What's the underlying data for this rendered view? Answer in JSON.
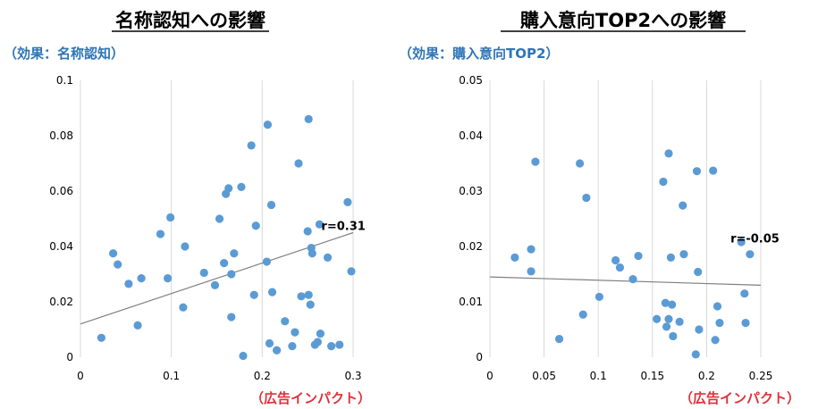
{
  "colors": {
    "point": "#5B9BD5",
    "grid": "#D9D9D9",
    "trend": "#7F7F7F",
    "effect": "#2E75B6",
    "xlabel": "#E0303A"
  },
  "chart_data": [
    {
      "type": "scatter",
      "title": "名称認知への影響",
      "subtitle": "（効果：名称認知）",
      "xlabel": "（広告インパクト）",
      "xlim": [
        0,
        0.3
      ],
      "ylim": [
        0,
        0.1
      ],
      "xticks": [
        "0",
        "0.1",
        "0.2",
        "0.3"
      ],
      "yticks": [
        "0",
        "0.02",
        "0.04",
        "0.06",
        "0.08",
        "0.1"
      ],
      "grid": "vertical",
      "trendline": {
        "x": [
          0,
          0.3
        ],
        "y": [
          0.012,
          0.045
        ]
      },
      "annotation": {
        "text": "r=0.31",
        "x": 0.265,
        "y": 0.046
      },
      "points": [
        [
          0.023,
          0.007
        ],
        [
          0.036,
          0.0375
        ],
        [
          0.041,
          0.0335
        ],
        [
          0.053,
          0.0265
        ],
        [
          0.063,
          0.0115
        ],
        [
          0.067,
          0.0285
        ],
        [
          0.088,
          0.0445
        ],
        [
          0.096,
          0.0285
        ],
        [
          0.099,
          0.0505
        ],
        [
          0.113,
          0.018
        ],
        [
          0.115,
          0.04
        ],
        [
          0.136,
          0.0305
        ],
        [
          0.148,
          0.026
        ],
        [
          0.153,
          0.05
        ],
        [
          0.158,
          0.034
        ],
        [
          0.16,
          0.059
        ],
        [
          0.163,
          0.061
        ],
        [
          0.166,
          0.03
        ],
        [
          0.166,
          0.0145
        ],
        [
          0.169,
          0.0375
        ],
        [
          0.177,
          0.0615
        ],
        [
          0.179,
          0.0005
        ],
        [
          0.188,
          0.0765
        ],
        [
          0.191,
          0.0225
        ],
        [
          0.193,
          0.0475
        ],
        [
          0.205,
          0.0345
        ],
        [
          0.206,
          0.084
        ],
        [
          0.208,
          0.005
        ],
        [
          0.21,
          0.055
        ],
        [
          0.211,
          0.0235
        ],
        [
          0.216,
          0.0025
        ],
        [
          0.225,
          0.013
        ],
        [
          0.233,
          0.004
        ],
        [
          0.236,
          0.009
        ],
        [
          0.24,
          0.07
        ],
        [
          0.243,
          0.022
        ],
        [
          0.25,
          0.0455
        ],
        [
          0.251,
          0.086
        ],
        [
          0.251,
          0.0225
        ],
        [
          0.253,
          0.019
        ],
        [
          0.254,
          0.0395
        ],
        [
          0.255,
          0.0375
        ],
        [
          0.258,
          0.0045
        ],
        [
          0.261,
          0.0055
        ],
        [
          0.263,
          0.048
        ],
        [
          0.264,
          0.0085
        ],
        [
          0.272,
          0.036
        ],
        [
          0.276,
          0.004
        ],
        [
          0.285,
          0.0045
        ],
        [
          0.294,
          0.056
        ],
        [
          0.298,
          0.031
        ]
      ]
    },
    {
      "type": "scatter",
      "title": "購入意向TOP2への影響",
      "subtitle": "（効果：購入意向TOP2）",
      "xlabel": "（広告インパクト）",
      "xlim": [
        0,
        0.25
      ],
      "ylim": [
        0,
        0.05
      ],
      "xticks": [
        "0",
        "0.05",
        "0.1",
        "0.15",
        "0.2",
        "0.25"
      ],
      "yticks": [
        "0",
        "0.01",
        "0.02",
        "0.03",
        "0.04",
        "0.05"
      ],
      "grid": "vertical",
      "trendline": {
        "x": [
          0,
          0.25
        ],
        "y": [
          0.0145,
          0.013
        ]
      },
      "annotation": {
        "text": "r=-0.05",
        "x": 0.222,
        "y": 0.0207
      },
      "points": [
        [
          0.023,
          0.018
        ],
        [
          0.038,
          0.0195
        ],
        [
          0.038,
          0.0155
        ],
        [
          0.042,
          0.0353
        ],
        [
          0.064,
          0.0033
        ],
        [
          0.083,
          0.035
        ],
        [
          0.086,
          0.0077
        ],
        [
          0.089,
          0.0288
        ],
        [
          0.101,
          0.0109
        ],
        [
          0.116,
          0.0175
        ],
        [
          0.12,
          0.0162
        ],
        [
          0.132,
          0.0141
        ],
        [
          0.137,
          0.0183
        ],
        [
          0.154,
          0.0069
        ],
        [
          0.16,
          0.0317
        ],
        [
          0.162,
          0.0098
        ],
        [
          0.163,
          0.0055
        ],
        [
          0.165,
          0.0368
        ],
        [
          0.165,
          0.0069
        ],
        [
          0.167,
          0.018
        ],
        [
          0.168,
          0.0095
        ],
        [
          0.169,
          0.0038
        ],
        [
          0.175,
          0.0064
        ],
        [
          0.178,
          0.0274
        ],
        [
          0.179,
          0.0186
        ],
        [
          0.19,
          0.0005
        ],
        [
          0.191,
          0.0336
        ],
        [
          0.192,
          0.0154
        ],
        [
          0.193,
          0.005
        ],
        [
          0.206,
          0.0337
        ],
        [
          0.208,
          0.0031
        ],
        [
          0.21,
          0.0092
        ],
        [
          0.212,
          0.0062
        ],
        [
          0.232,
          0.0208
        ],
        [
          0.235,
          0.0115
        ],
        [
          0.236,
          0.0062
        ],
        [
          0.24,
          0.0186
        ]
      ]
    }
  ]
}
